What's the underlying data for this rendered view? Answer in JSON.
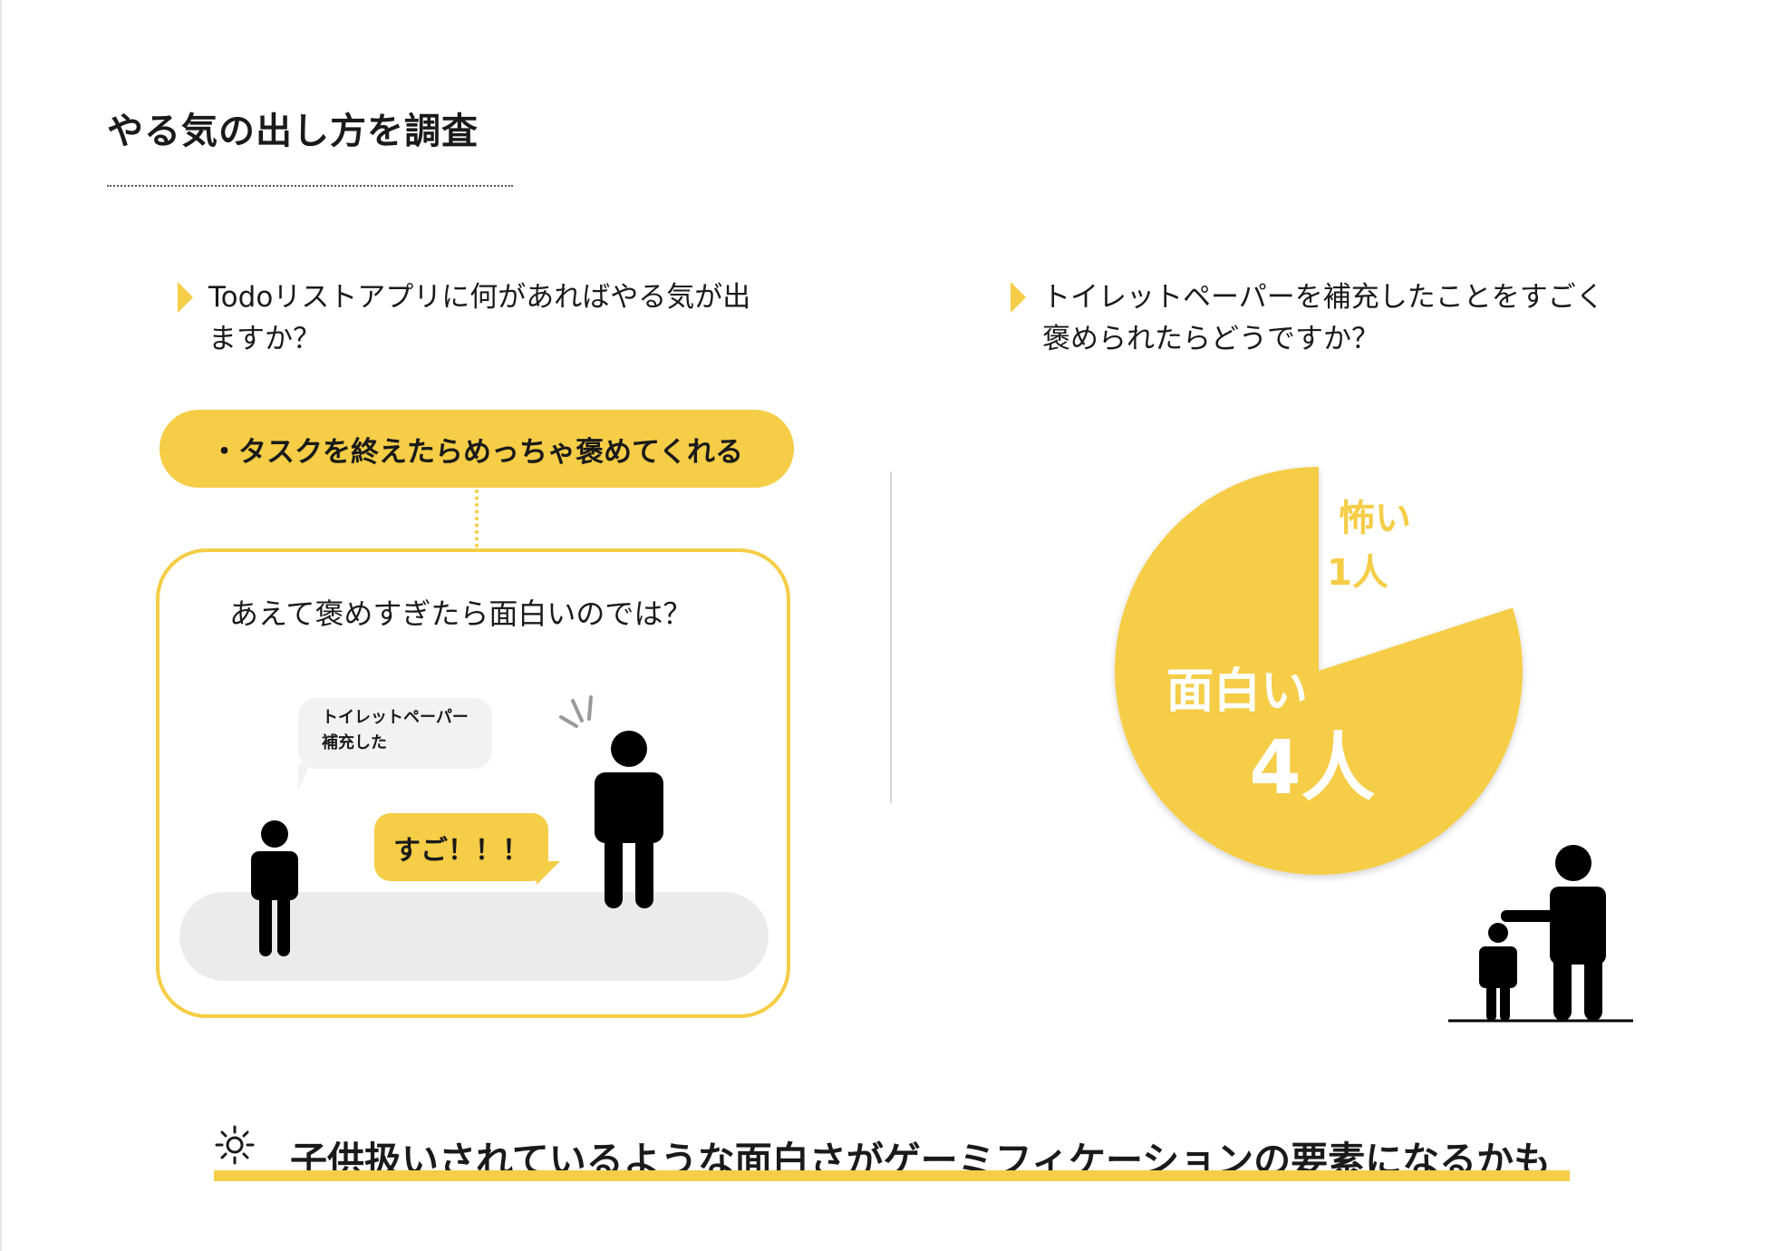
{
  "page": {
    "title": "やる気の出し方を調査"
  },
  "left": {
    "question_line1": "Todoリストアプリに何があればやる気が出",
    "question_line2": "ますか？",
    "answer_pill": "・タスクを終えたらめっちゃ褒めてくれる",
    "scene_caption": "あえて褒めすぎたら面白いのでは？",
    "bubble_small_line1": "トイレットペーパー",
    "bubble_small_line2": "補充した",
    "bubble_praise": "すご！！！"
  },
  "right": {
    "question_line1": "トイレットペーパーを補充したことをすごく",
    "question_line2": "褒められたらどうですか？"
  },
  "chart_data": {
    "type": "pie",
    "slices": [
      {
        "label": "面白い",
        "value_label": "4人",
        "value": 4,
        "color": "#f5cd46"
      },
      {
        "label": "怖い",
        "value_label": "1人",
        "value": 1,
        "color": "#ffffff"
      }
    ]
  },
  "conclusion": {
    "text": "子供扱いされているような面白さがゲーミフィケーションの要素になるかも",
    "icon": "sun-icon"
  },
  "colors": {
    "accent": "#f5cd46",
    "text": "#1a1a1a",
    "ground": "#ebebec"
  }
}
